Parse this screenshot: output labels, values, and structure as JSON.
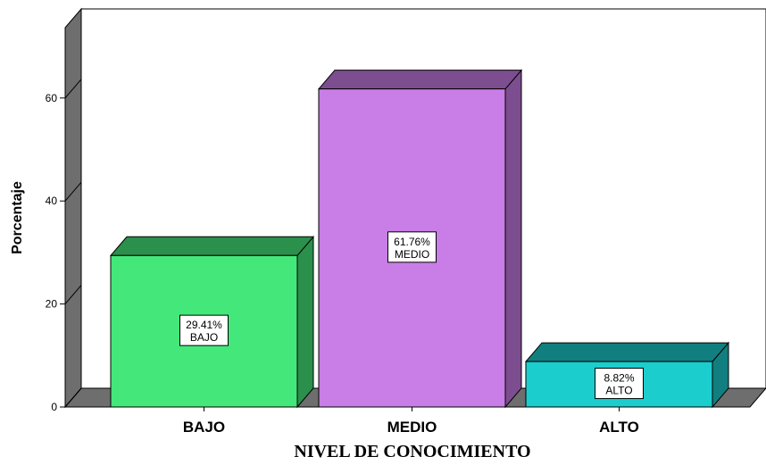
{
  "chart_data": {
    "type": "bar",
    "categories": [
      "BAJO",
      "MEDIO",
      "ALTO"
    ],
    "values": [
      29.41,
      61.76,
      8.82
    ],
    "data_labels": [
      {
        "value": "29.41%",
        "category": "BAJO"
      },
      {
        "value": "61.76%",
        "category": "MEDIO"
      },
      {
        "value": "8.82%",
        "category": "ALTO"
      }
    ],
    "colors": [
      "#44e87a",
      "#c87ee6",
      "#1ccdcd"
    ],
    "xlabel": "NIVEL DE CONOCIMIENTO",
    "ylabel": "Porcentaje",
    "yticks": [
      0,
      20,
      40,
      60
    ],
    "ylim": [
      0,
      70
    ],
    "grid": false,
    "style": "3d"
  }
}
